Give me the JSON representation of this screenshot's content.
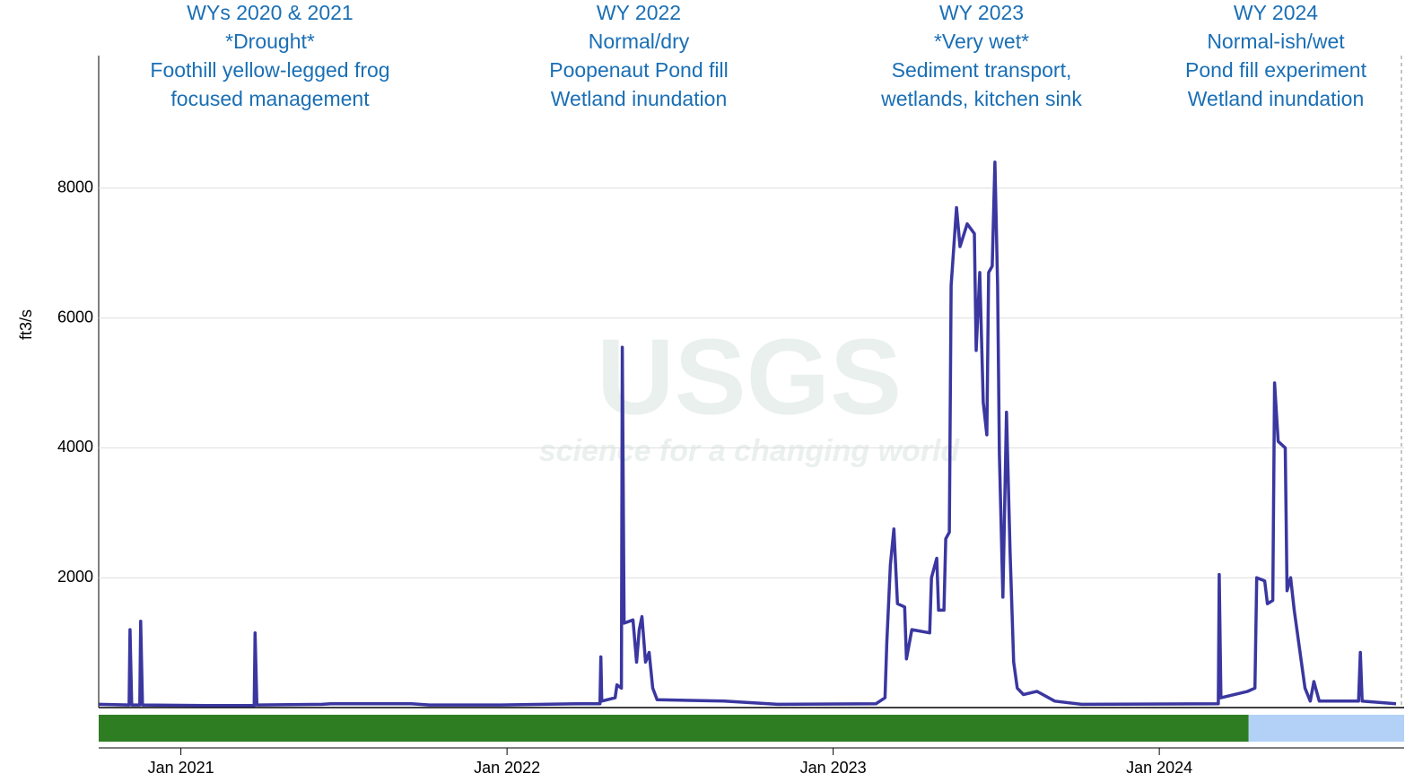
{
  "chart_data": {
    "type": "line",
    "y_label": "ft3/s",
    "annotations": [
      [
        "WYs 2020 & 2021",
        "*Drought*",
        "Foothill yellow-legged frog",
        "focused management"
      ],
      [
        "WY 2022",
        "Normal/dry",
        "Poopenaut Pond fill",
        "Wetland  inundation"
      ],
      [
        "WY 2023",
        "*Very wet*",
        "Sediment transport,",
        "wetlands, kitchen sink"
      ],
      [
        "WY 2024",
        "Normal-ish/wet",
        "Pond fill experiment",
        "Wetland inundation"
      ]
    ],
    "watermark": [
      "USGS",
      "science for a changing world"
    ],
    "color": "#3a37a0",
    "xlim": [
      "2020-10-01",
      "2024-10-01"
    ],
    "xticks": [
      {
        "value": "2021-01-01",
        "label": "Jan 2021"
      },
      {
        "value": "2022-01-01",
        "label": "Jan 2022"
      },
      {
        "value": "2023-01-01",
        "label": "Jan 2023"
      },
      {
        "value": "2024-01-01",
        "label": "Jan 2024"
      }
    ],
    "ylim": [
      0,
      10000
    ],
    "yticks": [
      2000,
      4000,
      6000,
      8000
    ],
    "grid": true,
    "status_bar": [
      {
        "start": "2020-10-01",
        "end": "2024-04-10",
        "color": "#2e7d23"
      },
      {
        "start": "2024-04-10",
        "end": "2024-10-01",
        "color": "#b3d1f7"
      }
    ],
    "x": [
      "2020-10-01",
      "2020-11-04",
      "2020-11-05",
      "2020-11-07",
      "2020-11-16",
      "2020-11-17",
      "2020-11-19",
      "2021-01-29",
      "2021-03-24",
      "2021-03-25",
      "2021-03-27",
      "2021-06-08",
      "2021-06-18",
      "2021-09-16",
      "2021-10-06",
      "2021-12-25",
      "2022-03-25",
      "2022-04-15",
      "2022-04-16",
      "2022-04-17",
      "2022-05-02",
      "2022-05-04",
      "2022-05-09",
      "2022-05-10",
      "2022-05-12",
      "2022-05-22",
      "2022-05-26",
      "2022-05-29",
      "2022-06-01",
      "2022-06-05",
      "2022-06-09",
      "2022-06-13",
      "2022-06-18",
      "2022-09-01",
      "2022-10-31",
      "2023-02-18",
      "2023-02-28",
      "2023-03-02",
      "2023-03-06",
      "2023-03-10",
      "2023-03-14",
      "2023-03-22",
      "2023-03-24",
      "2023-03-30",
      "2023-04-19",
      "2023-04-21",
      "2023-04-27",
      "2023-04-29",
      "2023-05-05",
      "2023-05-07",
      "2023-05-11",
      "2023-05-13",
      "2023-05-19",
      "2023-05-23",
      "2023-05-31",
      "2023-06-08",
      "2023-06-10",
      "2023-06-14",
      "2023-06-18",
      "2023-06-22",
      "2023-06-24",
      "2023-06-28",
      "2023-07-01",
      "2023-07-04",
      "2023-07-06",
      "2023-07-10",
      "2023-07-14",
      "2023-07-18",
      "2023-07-22",
      "2023-07-26",
      "2023-08-02",
      "2023-08-17",
      "2023-09-06",
      "2023-10-06",
      "2024-03-07",
      "2024-03-08",
      "2024-03-10",
      "2024-04-09",
      "2024-04-17",
      "2024-04-19",
      "2024-04-28",
      "2024-05-01",
      "2024-05-07",
      "2024-05-09",
      "2024-05-13",
      "2024-05-21",
      "2024-05-23",
      "2024-05-27",
      "2024-05-31",
      "2024-06-04",
      "2024-06-12",
      "2024-06-18",
      "2024-06-22",
      "2024-06-28",
      "2024-08-11",
      "2024-08-13",
      "2024-08-15",
      "2024-09-22"
    ],
    "values": [
      50,
      40,
      1200,
      40,
      40,
      1330,
      40,
      30,
      30,
      1150,
      40,
      50,
      60,
      60,
      40,
      40,
      60,
      60,
      780,
      100,
      150,
      350,
      300,
      5550,
      1300,
      1350,
      700,
      1200,
      1400,
      700,
      850,
      300,
      120,
      100,
      50,
      60,
      150,
      1000,
      2200,
      2750,
      1600,
      1550,
      750,
      1200,
      1150,
      2000,
      2300,
      1500,
      1500,
      2600,
      2700,
      6500,
      7700,
      7100,
      7450,
      7300,
      5500,
      6700,
      4700,
      4200,
      6700,
      6800,
      8400,
      6500,
      3900,
      1700,
      4550,
      2400,
      700,
      300,
      200,
      250,
      100,
      50,
      60,
      2050,
      150,
      250,
      300,
      2000,
      1950,
      1600,
      1650,
      5000,
      4100,
      4000,
      1800,
      2000,
      1500,
      1100,
      300,
      100,
      400,
      100,
      100,
      850,
      100,
      60
    ]
  }
}
